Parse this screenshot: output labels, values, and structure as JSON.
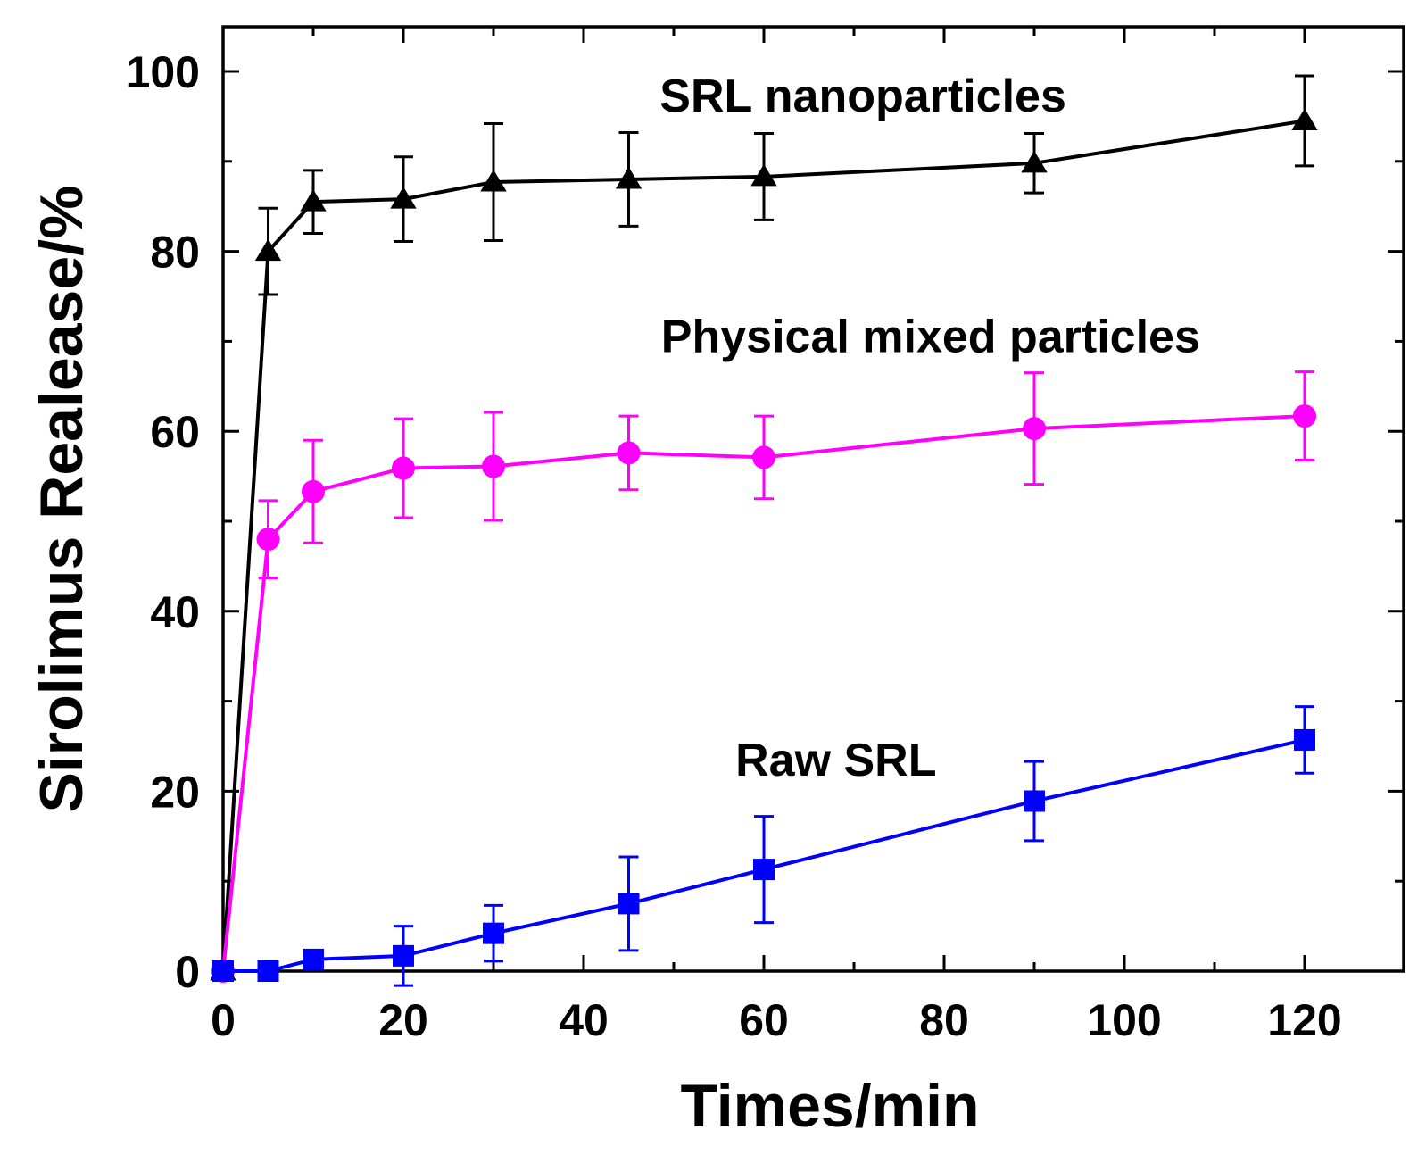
{
  "chart_data": {
    "type": "line",
    "title": "",
    "xlabel": "Times/min",
    "ylabel": "Sirolimus Realease/%",
    "xlim": [
      0,
      130
    ],
    "ylim": [
      0,
      105
    ],
    "xticks": [
      0,
      20,
      40,
      60,
      80,
      100,
      120
    ],
    "yticks": [
      0,
      20,
      40,
      60,
      80,
      100
    ],
    "xtick_labels": [
      "0",
      "20",
      "40",
      "60",
      "80",
      "100",
      "120"
    ],
    "ytick_labels": [
      "0",
      "20",
      "40",
      "60",
      "80",
      "100"
    ],
    "grid": false,
    "series": [
      {
        "name": "SRL nanoparticles",
        "color": "#000000",
        "marker": "triangle",
        "x": [
          0,
          5,
          10,
          20,
          30,
          45,
          60,
          90,
          120
        ],
        "y": [
          0,
          80,
          85.5,
          85.8,
          87.7,
          88,
          88.3,
          89.8,
          94.5
        ],
        "err": [
          0,
          4.8,
          3.5,
          4.7,
          6.5,
          5.2,
          4.8,
          3.3,
          5
        ]
      },
      {
        "name": "Physical mixed particles",
        "color": "#ff00ff",
        "marker": "circle",
        "x": [
          0,
          5,
          10,
          20,
          30,
          45,
          60,
          90,
          120
        ],
        "y": [
          0,
          48,
          53.3,
          55.9,
          56.1,
          57.6,
          57.1,
          60.3,
          61.7
        ],
        "err": [
          0,
          4.3,
          5.7,
          5.5,
          6,
          4.1,
          4.6,
          6.2,
          4.9
        ]
      },
      {
        "name": "Raw SRL",
        "color": "#0000ff",
        "marker": "square",
        "x": [
          0,
          5,
          10,
          20,
          30,
          45,
          60,
          90,
          120
        ],
        "y": [
          0,
          0,
          1.3,
          1.7,
          4.2,
          7.5,
          11.3,
          18.9,
          25.7
        ],
        "err": [
          0,
          0,
          0,
          3.3,
          3.1,
          5.2,
          5.9,
          4.4,
          3.7
        ]
      }
    ],
    "annotations": [
      {
        "text": "SRL nanoparticles",
        "x": 71,
        "y": 97.3
      },
      {
        "text": "Physical mixed particles",
        "x": 78.5,
        "y": 70.6
      },
      {
        "text": "Raw SRL",
        "x": 68,
        "y": 23.5
      }
    ]
  }
}
